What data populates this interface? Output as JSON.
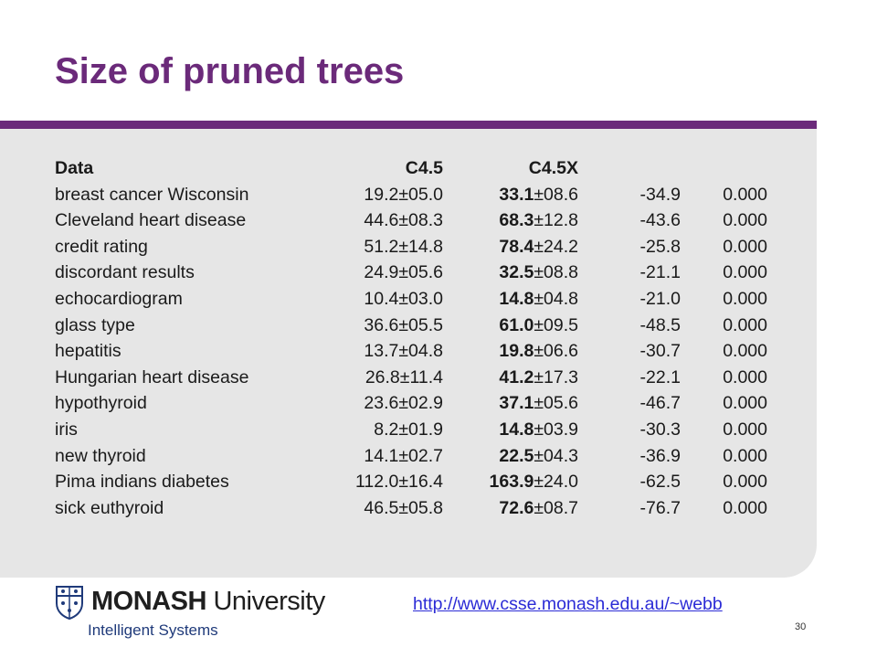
{
  "title": "Size of pruned trees",
  "table": {
    "headers": [
      "Data",
      "C4.5",
      "C4.5X",
      "",
      ""
    ],
    "rows": [
      [
        "breast cancer Wisconsin",
        "19.2±05.0",
        "33.1",
        "±08.6",
        "-34.9",
        "0.000"
      ],
      [
        "Cleveland heart disease",
        "44.6±08.3",
        "68.3",
        "±12.8",
        "-43.6",
        "0.000"
      ],
      [
        "credit rating",
        "51.2±14.8",
        "78.4",
        "±24.2",
        "-25.8",
        "0.000"
      ],
      [
        "discordant results",
        "24.9±05.6",
        "32.5",
        "±08.8",
        "-21.1",
        "0.000"
      ],
      [
        "echocardiogram",
        "10.4±03.0",
        "14.8",
        "±04.8",
        "-21.0",
        "0.000"
      ],
      [
        "glass type",
        "36.6±05.5",
        "61.0",
        "±09.5",
        "-48.5",
        "0.000"
      ],
      [
        "hepatitis",
        "13.7±04.8",
        "19.8",
        "±06.6",
        "-30.7",
        "0.000"
      ],
      [
        "Hungarian heart disease",
        "26.8±11.4",
        "41.2",
        "±17.3",
        "-22.1",
        "0.000"
      ],
      [
        "hypothyroid",
        "23.6±02.9",
        "37.1",
        "±05.6",
        "-46.7",
        "0.000"
      ],
      [
        "iris",
        "8.2±01.9",
        "14.8",
        "±03.9",
        "-30.3",
        "0.000"
      ],
      [
        "new thyroid",
        "14.1±02.7",
        "22.5",
        "±04.3",
        "-36.9",
        "0.000"
      ],
      [
        "Pima indians diabetes",
        "112.0±16.4",
        "163.9",
        "±24.0",
        "-62.5",
        "0.000"
      ],
      [
        "sick euthyroid",
        "46.5±05.8",
        "72.6",
        "±08.7",
        "-76.7",
        "0.000"
      ]
    ]
  },
  "footer": {
    "logo_bold": "MONASH",
    "logo_regular": " University",
    "subtitle": "Intelligent Systems",
    "link": "http://www.csse.monash.edu.au/~webb",
    "page_number": "30"
  },
  "colors": {
    "title": "#6b2a7a",
    "rule": "#6b2a7a",
    "panel": "#e6e6e6",
    "link": "#2b2bd6"
  }
}
